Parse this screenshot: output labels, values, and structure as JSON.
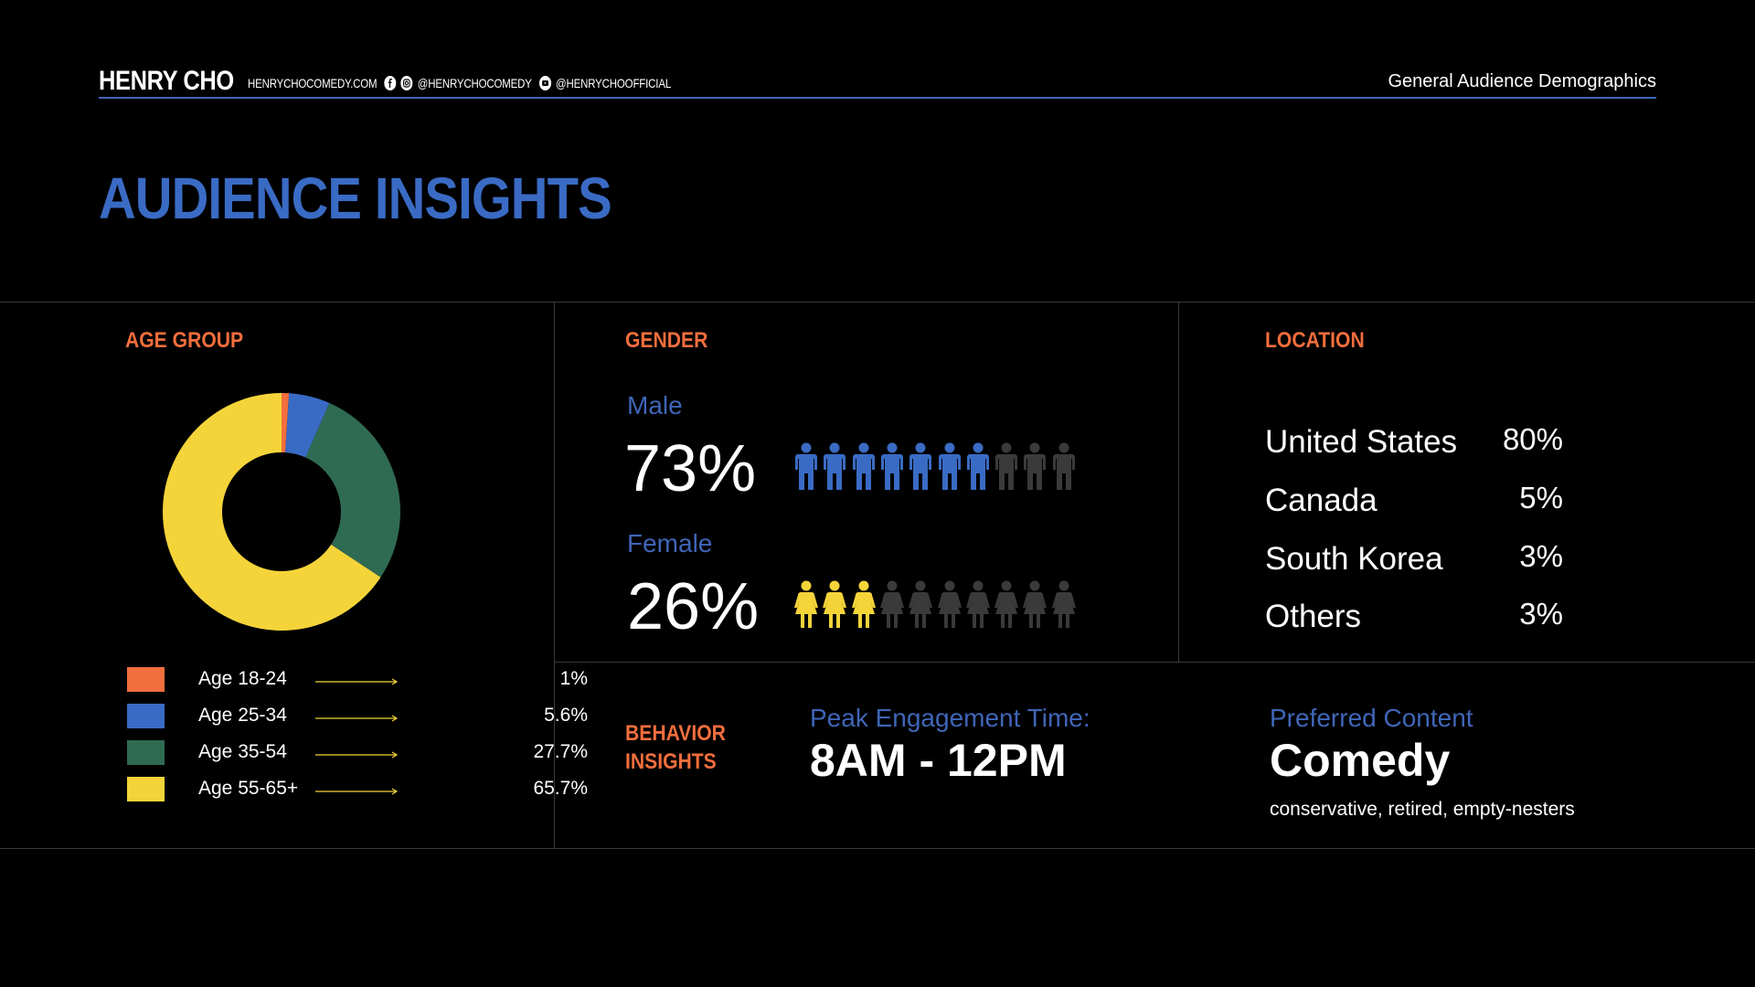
{
  "header": {
    "brand": "HENRY CHO",
    "website": "HENRYCHOCOMEDY.COM",
    "instagram": "@HENRYCHOCOMEDY",
    "youtube": "@HENRYCHOOFFICIAL",
    "right_title": "General Audience Demographics"
  },
  "page_title": "AUDIENCE INSIGHTS",
  "age_group": {
    "label": "AGE GROUP"
  },
  "gender": {
    "label": "GENDER",
    "male_label": "Male",
    "male_pct": "73%",
    "female_label": "Female",
    "female_pct": "26%",
    "icons_total": 10,
    "male_filled": 7,
    "female_filled": 3
  },
  "location": {
    "label": "LOCATION",
    "rows": [
      {
        "name": "United States",
        "value": "80%"
      },
      {
        "name": "Canada",
        "value": "5%"
      },
      {
        "name": "South Korea",
        "value": "3%"
      },
      {
        "name": "Others",
        "value": "3%"
      }
    ]
  },
  "behavior": {
    "label_line1": "BEHAVIOR",
    "label_line2": "INSIGHTS",
    "peak_label": "Peak Engagement Time:",
    "peak_value": "8AM - 12PM",
    "content_label": "Preferred Content",
    "content_value": "Comedy",
    "content_note": "conservative, retired, empty-nesters"
  },
  "colors": {
    "accent_blue": "#3a6bc4",
    "accent_orange": "#f26e3d",
    "male_icon": "#3a6bc4",
    "female_icon": "#f5d43a",
    "inactive_icon": "#3a3a3a"
  },
  "chart_data": {
    "type": "pie",
    "title": "AGE GROUP",
    "categories": [
      "Age 18-24",
      "Age 25-34",
      "Age 35-54",
      "Age 55-65+"
    ],
    "values": [
      1,
      5.6,
      27.7,
      65.7
    ],
    "labels": [
      "1%",
      "5.6%",
      "27.7%",
      "65.7%"
    ],
    "colors": [
      "#f26e3d",
      "#3a6bc4",
      "#2f6b52",
      "#f5d43a"
    ],
    "donut": true,
    "legend": "bottom-left"
  }
}
